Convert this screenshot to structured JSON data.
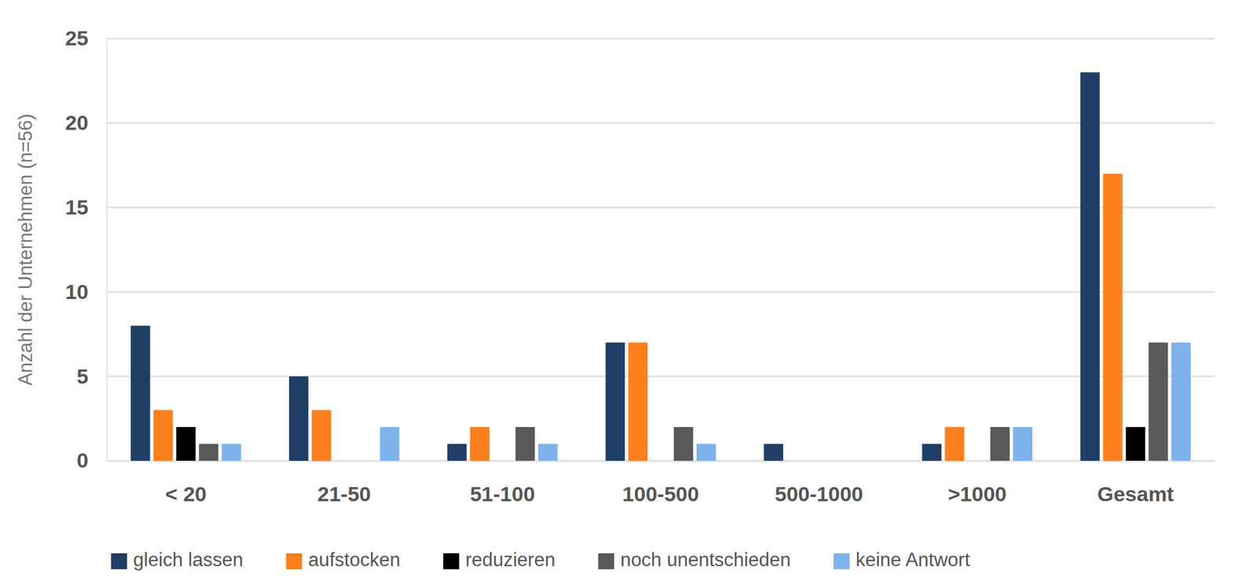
{
  "chart_data": {
    "type": "bar",
    "y_label": "Anzahl der Unternehmen (n=56)",
    "categories": [
      "< 20",
      "21-50",
      "51-100",
      "100-500",
      "500-1000",
      ">1000",
      "Gesamt"
    ],
    "series": [
      {
        "name": "gleich lassen",
        "color": "#203f66",
        "values": [
          8,
          5,
          1,
          7,
          1,
          1,
          23
        ]
      },
      {
        "name": "aufstocken",
        "color": "#fd7f1c",
        "values": [
          3,
          3,
          2,
          7,
          0,
          2,
          17
        ]
      },
      {
        "name": "reduzieren",
        "color": "#000000",
        "values": [
          2,
          0,
          0,
          0,
          0,
          0,
          2
        ]
      },
      {
        "name": "noch unentschieden",
        "color": "#595959",
        "values": [
          1,
          0,
          2,
          2,
          0,
          2,
          7
        ]
      },
      {
        "name": "keine Antwort",
        "color": "#7cb3ea",
        "values": [
          1,
          2,
          1,
          1,
          0,
          2,
          7
        ]
      }
    ],
    "ylim": [
      0,
      25
    ],
    "yticks": [
      0,
      5,
      10,
      15,
      20,
      25
    ],
    "grid": true,
    "legend": "bottom"
  }
}
